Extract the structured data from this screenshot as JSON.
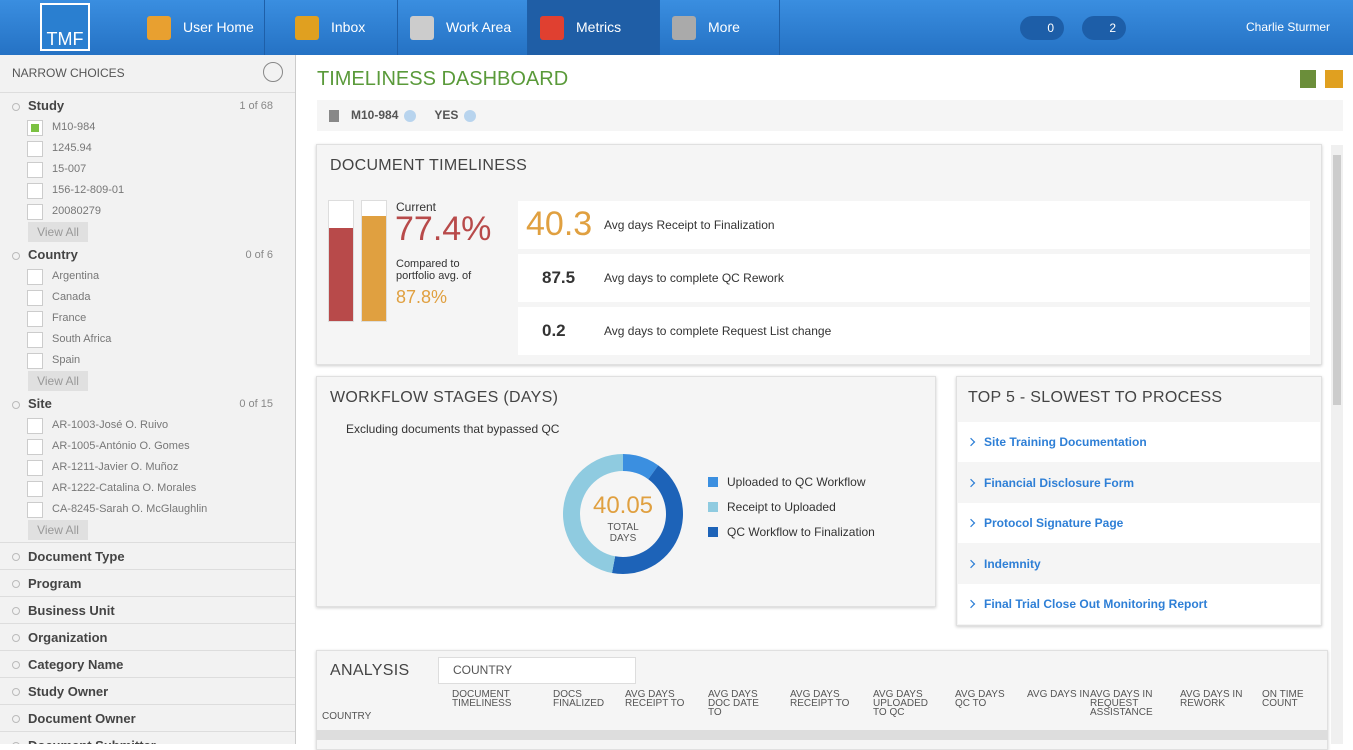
{
  "nav": {
    "logo": "TMF",
    "items": [
      "User Home",
      "Inbox",
      "Work Area",
      "Metrics",
      "More"
    ],
    "badges": [
      "0",
      "2"
    ],
    "user": "Charlie Sturmer"
  },
  "sidebar": {
    "title": "NARROW CHOICES",
    "groups": [
      {
        "name": "Study",
        "count": "1 of 68",
        "options": [
          "M10-984",
          "1245.94",
          "15-007",
          "156-12-809-01",
          "20080279"
        ],
        "view_all": "View All"
      },
      {
        "name": "Country",
        "count": "0 of 6",
        "options": [
          "Argentina",
          "Canada",
          "France",
          "South Africa",
          "Spain"
        ],
        "view_all": "View All"
      },
      {
        "name": "Site",
        "count": "0 of 15",
        "options": [
          "AR-1003-José O. Ruivo",
          "AR-1005-António O. Gomes",
          "AR-1211-Javier O. Muñoz",
          "AR-1222-Catalina O. Morales",
          "CA-8245-Sarah O. McGlaughlin"
        ],
        "view_all": "View All"
      }
    ],
    "collapsed": [
      "Document Type",
      "Program",
      "Business Unit",
      "Organization",
      "Category Name",
      "Study Owner",
      "Document Owner",
      "Document Submitter"
    ]
  },
  "header": {
    "title": "TIMELINESS DASHBOARD",
    "filters": [
      "M10-984",
      "YES"
    ]
  },
  "document_timeliness": {
    "title": "DOCUMENT TIMELINESS",
    "current_label": "Current",
    "current": {
      "value": 77.4,
      "label": "77.4%"
    },
    "compared_label": "Compared to portfolio avg. of",
    "portfolio": {
      "value": 87.8,
      "label": "87.8%"
    },
    "metrics": [
      {
        "value": 40.3,
        "label": "Avg days Receipt to Finalization"
      },
      {
        "value": 87.5,
        "label": "Avg days to complete QC Rework"
      },
      {
        "value": 0.2,
        "label": "Avg days to complete Request List change"
      }
    ]
  },
  "workflow": {
    "title": "WORKFLOW STAGES (DAYS)",
    "note": "Excluding documents that bypassed QC",
    "total": 40.05,
    "total_label": "TOTAL DAYS",
    "series": [
      {
        "name": "Uploaded to QC Workflow",
        "color": "#3b8fe0",
        "value": 4.0
      },
      {
        "name": "Receipt to Uploaded",
        "color": "#8fcbe0",
        "value": 18.85
      },
      {
        "name": "QC Workflow to Finalization",
        "color": "#1d63b8",
        "value": 17.2
      }
    ]
  },
  "top5": {
    "title": "TOP 5 - SLOWEST TO PROCESS",
    "items": [
      "Site Training Documentation",
      "Financial Disclosure Form",
      "Protocol Signature Page",
      "Indemnity",
      "Final Trial Close Out Monitoring Report"
    ]
  },
  "analysis": {
    "title": "ANALYSIS",
    "dropdown": "COUNTRY",
    "columns": [
      "COUNTRY",
      "DOCUMENT TIMELINESS",
      "DOCS FINALIZED",
      "AVG DAYS RECEIPT TO",
      "AVG DAYS DOC DATE TO",
      "AVG DAYS RECEIPT TO",
      "AVG DAYS UPLOADED TO QC",
      "AVG DAYS QC TO",
      "AVG DAYS IN",
      "AVG DAYS IN REQUEST ASSISTANCE",
      "AVG DAYS IN REWORK",
      "ON TIME COUNT"
    ]
  }
}
